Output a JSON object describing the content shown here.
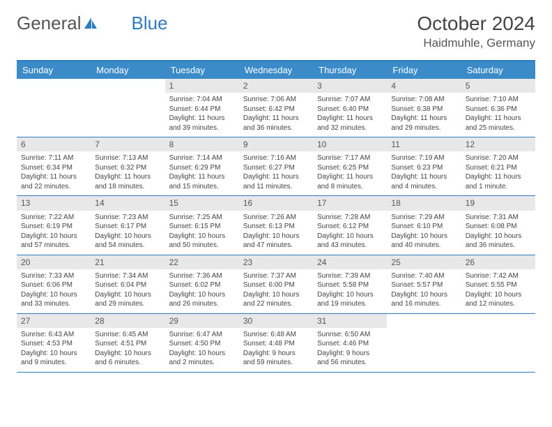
{
  "logo": {
    "part1": "General",
    "part2": "Blue"
  },
  "title": "October 2024",
  "location": "Haidmuhle, Germany",
  "colors": {
    "header_bg": "#3b8bc9",
    "border": "#2f7bbf",
    "daynum_bg": "#e8e8e8",
    "text": "#444444"
  },
  "weekdays": [
    "Sunday",
    "Monday",
    "Tuesday",
    "Wednesday",
    "Thursday",
    "Friday",
    "Saturday"
  ],
  "weeks": [
    [
      {
        "n": "",
        "sr": "",
        "ss": "",
        "dl": ""
      },
      {
        "n": "",
        "sr": "",
        "ss": "",
        "dl": ""
      },
      {
        "n": "1",
        "sr": "7:04 AM",
        "ss": "6:44 PM",
        "dl": "11 hours and 39 minutes."
      },
      {
        "n": "2",
        "sr": "7:06 AM",
        "ss": "6:42 PM",
        "dl": "11 hours and 36 minutes."
      },
      {
        "n": "3",
        "sr": "7:07 AM",
        "ss": "6:40 PM",
        "dl": "11 hours and 32 minutes."
      },
      {
        "n": "4",
        "sr": "7:08 AM",
        "ss": "6:38 PM",
        "dl": "11 hours and 29 minutes."
      },
      {
        "n": "5",
        "sr": "7:10 AM",
        "ss": "6:36 PM",
        "dl": "11 hours and 25 minutes."
      }
    ],
    [
      {
        "n": "6",
        "sr": "7:11 AM",
        "ss": "6:34 PM",
        "dl": "11 hours and 22 minutes."
      },
      {
        "n": "7",
        "sr": "7:13 AM",
        "ss": "6:32 PM",
        "dl": "11 hours and 18 minutes."
      },
      {
        "n": "8",
        "sr": "7:14 AM",
        "ss": "6:29 PM",
        "dl": "11 hours and 15 minutes."
      },
      {
        "n": "9",
        "sr": "7:16 AM",
        "ss": "6:27 PM",
        "dl": "11 hours and 11 minutes."
      },
      {
        "n": "10",
        "sr": "7:17 AM",
        "ss": "6:25 PM",
        "dl": "11 hours and 8 minutes."
      },
      {
        "n": "11",
        "sr": "7:19 AM",
        "ss": "6:23 PM",
        "dl": "11 hours and 4 minutes."
      },
      {
        "n": "12",
        "sr": "7:20 AM",
        "ss": "6:21 PM",
        "dl": "11 hours and 1 minute."
      }
    ],
    [
      {
        "n": "13",
        "sr": "7:22 AM",
        "ss": "6:19 PM",
        "dl": "10 hours and 57 minutes."
      },
      {
        "n": "14",
        "sr": "7:23 AM",
        "ss": "6:17 PM",
        "dl": "10 hours and 54 minutes."
      },
      {
        "n": "15",
        "sr": "7:25 AM",
        "ss": "6:15 PM",
        "dl": "10 hours and 50 minutes."
      },
      {
        "n": "16",
        "sr": "7:26 AM",
        "ss": "6:13 PM",
        "dl": "10 hours and 47 minutes."
      },
      {
        "n": "17",
        "sr": "7:28 AM",
        "ss": "6:12 PM",
        "dl": "10 hours and 43 minutes."
      },
      {
        "n": "18",
        "sr": "7:29 AM",
        "ss": "6:10 PM",
        "dl": "10 hours and 40 minutes."
      },
      {
        "n": "19",
        "sr": "7:31 AM",
        "ss": "6:08 PM",
        "dl": "10 hours and 36 minutes."
      }
    ],
    [
      {
        "n": "20",
        "sr": "7:33 AM",
        "ss": "6:06 PM",
        "dl": "10 hours and 33 minutes."
      },
      {
        "n": "21",
        "sr": "7:34 AM",
        "ss": "6:04 PM",
        "dl": "10 hours and 29 minutes."
      },
      {
        "n": "22",
        "sr": "7:36 AM",
        "ss": "6:02 PM",
        "dl": "10 hours and 26 minutes."
      },
      {
        "n": "23",
        "sr": "7:37 AM",
        "ss": "6:00 PM",
        "dl": "10 hours and 22 minutes."
      },
      {
        "n": "24",
        "sr": "7:39 AM",
        "ss": "5:58 PM",
        "dl": "10 hours and 19 minutes."
      },
      {
        "n": "25",
        "sr": "7:40 AM",
        "ss": "5:57 PM",
        "dl": "10 hours and 16 minutes."
      },
      {
        "n": "26",
        "sr": "7:42 AM",
        "ss": "5:55 PM",
        "dl": "10 hours and 12 minutes."
      }
    ],
    [
      {
        "n": "27",
        "sr": "6:43 AM",
        "ss": "4:53 PM",
        "dl": "10 hours and 9 minutes."
      },
      {
        "n": "28",
        "sr": "6:45 AM",
        "ss": "4:51 PM",
        "dl": "10 hours and 6 minutes."
      },
      {
        "n": "29",
        "sr": "6:47 AM",
        "ss": "4:50 PM",
        "dl": "10 hours and 2 minutes."
      },
      {
        "n": "30",
        "sr": "6:48 AM",
        "ss": "4:48 PM",
        "dl": "9 hours and 59 minutes."
      },
      {
        "n": "31",
        "sr": "6:50 AM",
        "ss": "4:46 PM",
        "dl": "9 hours and 56 minutes."
      },
      {
        "n": "",
        "sr": "",
        "ss": "",
        "dl": ""
      },
      {
        "n": "",
        "sr": "",
        "ss": "",
        "dl": ""
      }
    ]
  ]
}
